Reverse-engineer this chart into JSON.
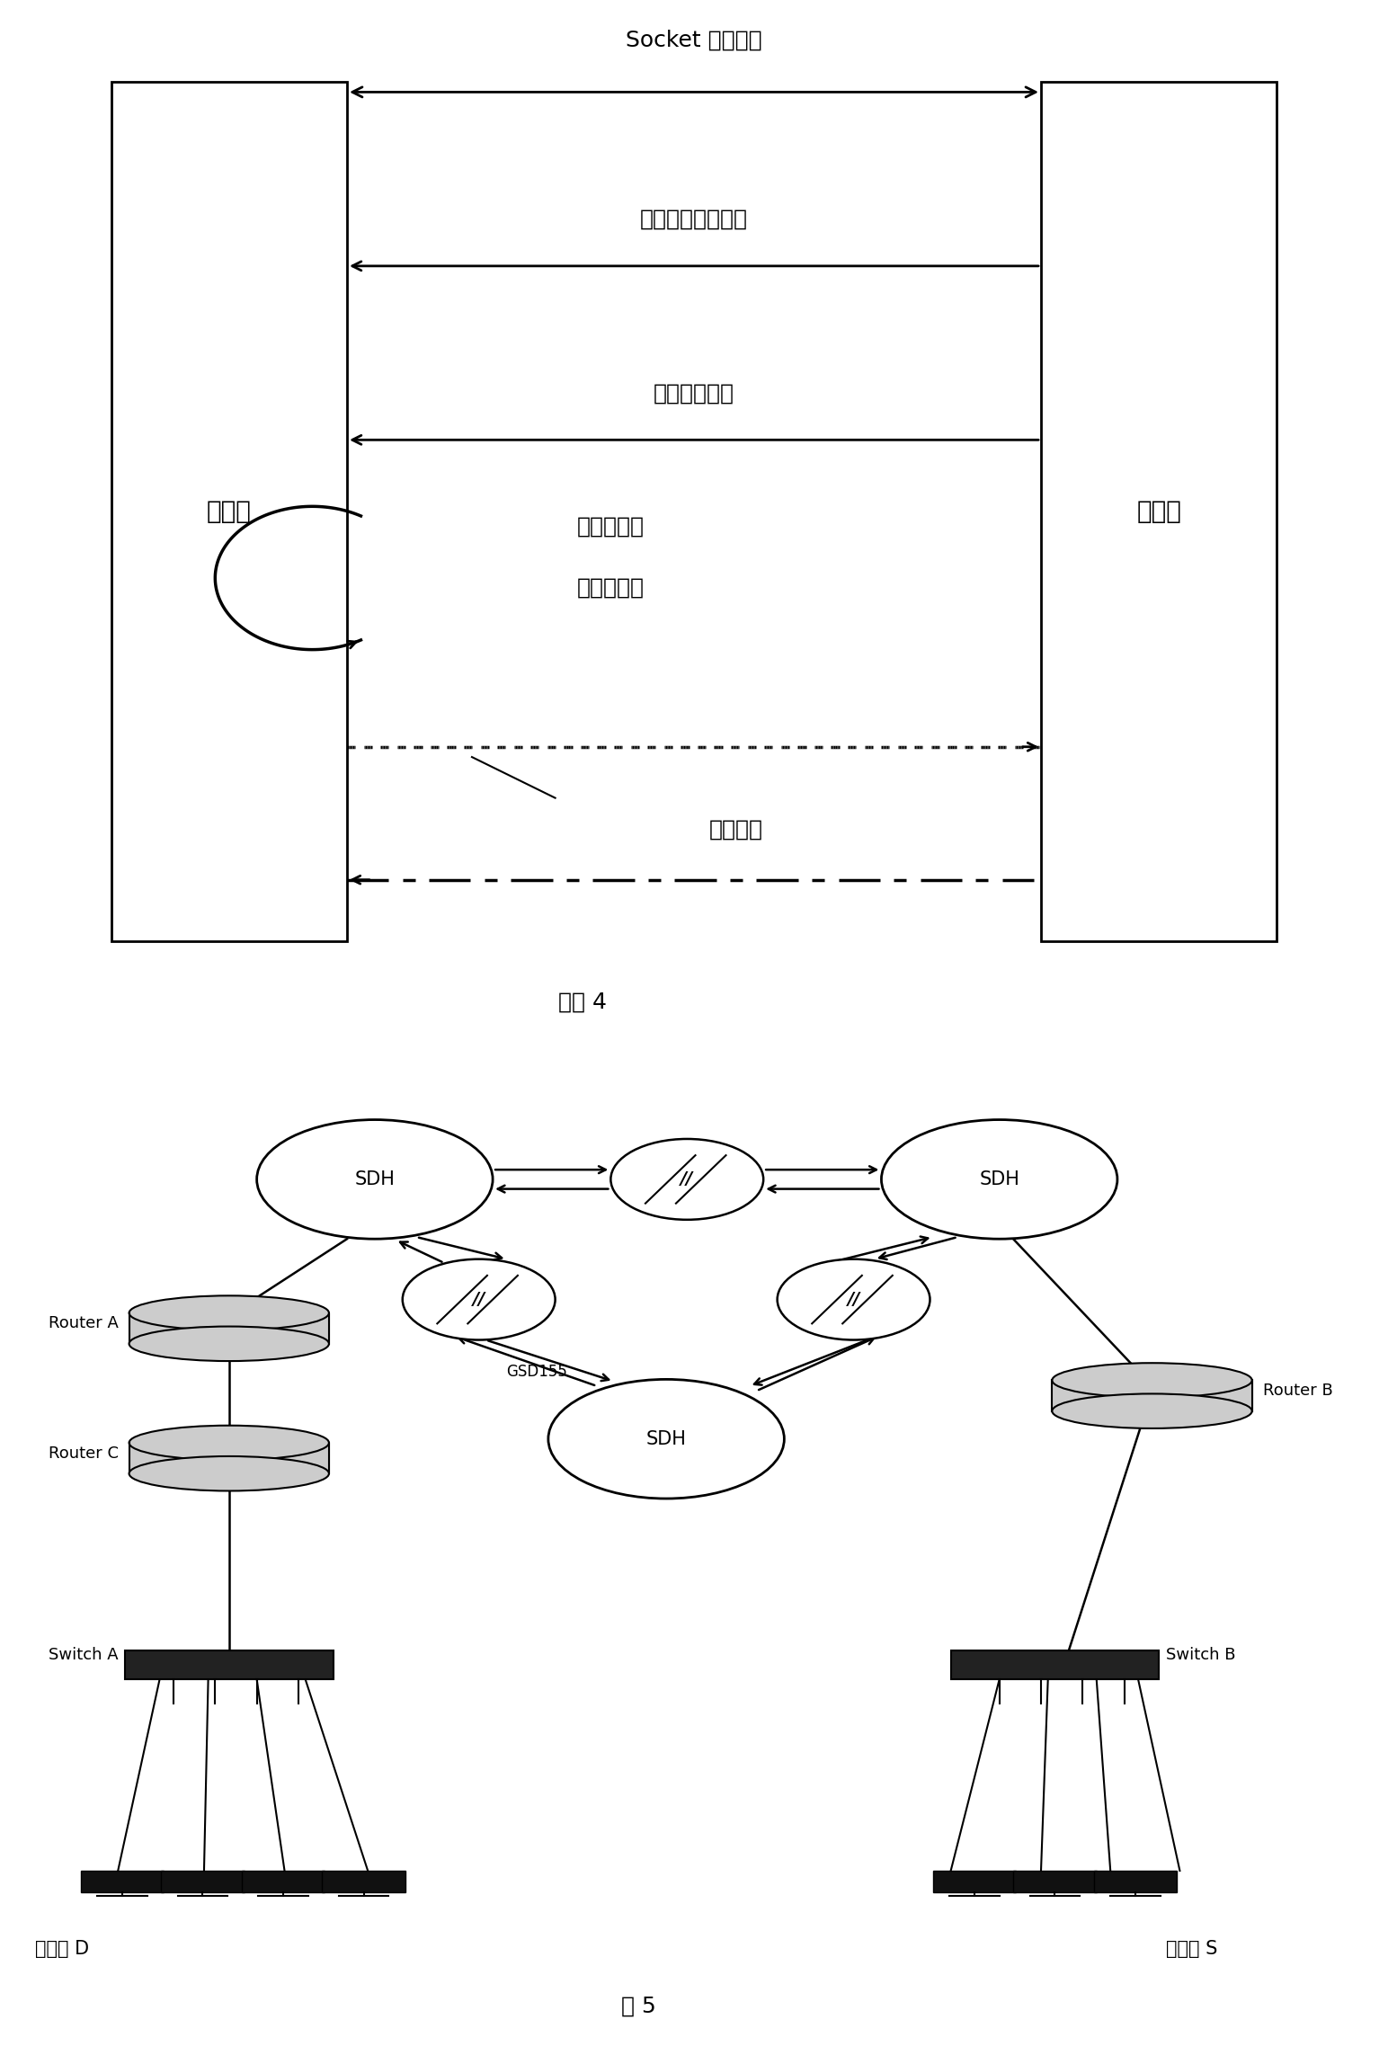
{
  "fig4": {
    "title": "图 4",
    "left_box_label": "接收端",
    "right_box_label": "发送端",
    "socket_label": "Socket 建立连接",
    "hop_label": "确定网络链路跳数",
    "probe_label": "发送探测包列",
    "interrupt_label1": "产生中断信",
    "interrupt_label2": "号计算带宽",
    "speed_label": "是否变速"
  },
  "fig5": {
    "title": "图 5",
    "sdh_label": "SDH",
    "gsd155_label": "GSD155",
    "router_a_label": "Router A",
    "router_b_label": "Router B",
    "router_c_label": "Router C",
    "switch_a_label": "Switch A",
    "switch_b_label": "Switch B",
    "recv_label": "接收端 D",
    "send_label": "发送端 S"
  }
}
